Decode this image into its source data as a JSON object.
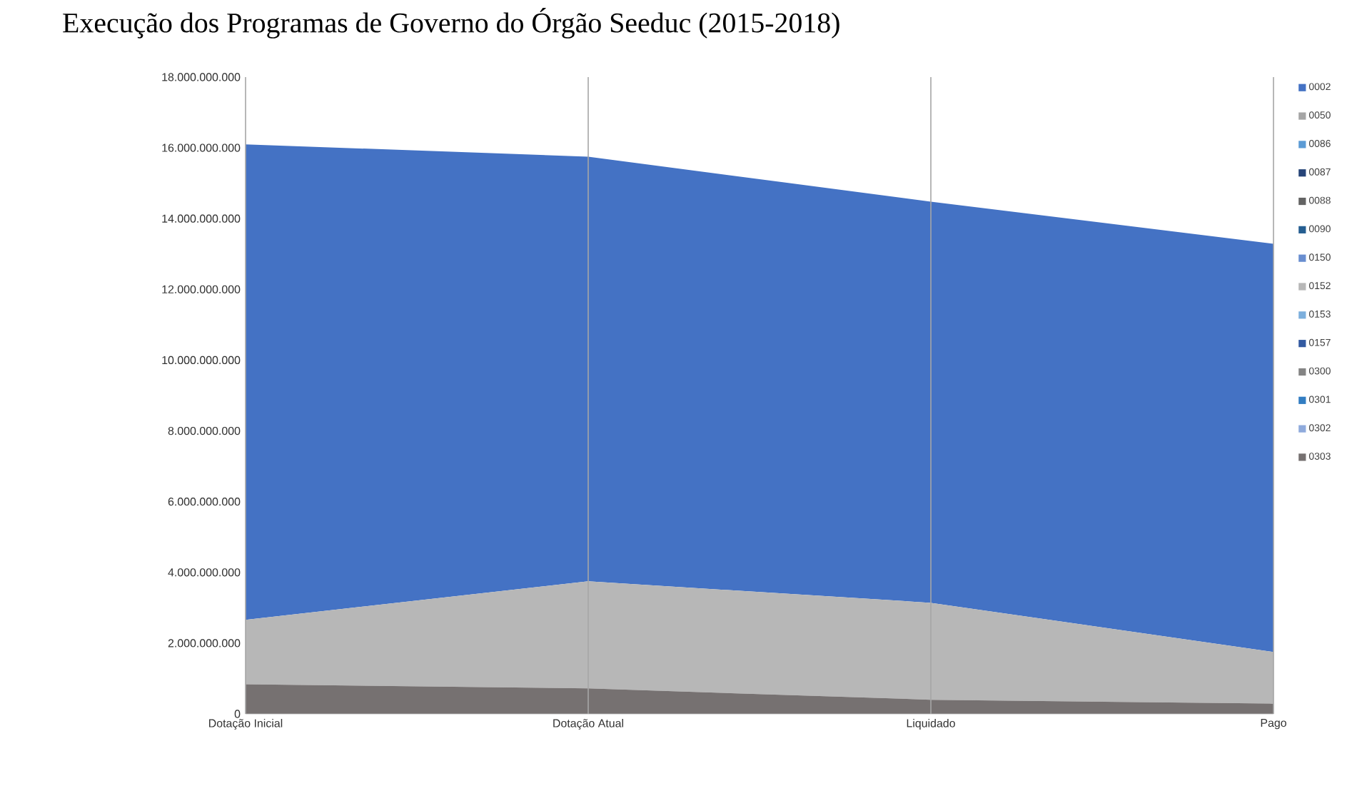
{
  "chart_data": {
    "type": "area",
    "stacked": true,
    "title": "Execução dos Programas de Governo do Órgão Seeduc (2015-2018)",
    "categories": [
      "Dotação Inicial",
      "Dotação Atual",
      "Liquidado",
      "Pago"
    ],
    "ylim": [
      0,
      18000000000
    ],
    "yticks": [
      {
        "value": 0,
        "label": "0"
      },
      {
        "value": 2000000000,
        "label": "2.000.000.000"
      },
      {
        "value": 4000000000,
        "label": "4.000.000.000"
      },
      {
        "value": 6000000000,
        "label": "6.000.000.000"
      },
      {
        "value": 8000000000,
        "label": "8.000.000.000"
      },
      {
        "value": 10000000000,
        "label": "10.000.000.000"
      },
      {
        "value": 12000000000,
        "label": "12.000.000.000"
      },
      {
        "value": 14000000000,
        "label": "14.000.000.000"
      },
      {
        "value": 16000000000,
        "label": "16.000.000.000"
      },
      {
        "value": 18000000000,
        "label": "18.000.000.000"
      }
    ],
    "grid": "x",
    "legend": "right",
    "series": [
      {
        "name": "0303",
        "color": "#767171",
        "values": [
          840000000,
          720000000,
          400000000,
          290000000
        ]
      },
      {
        "name": "0302",
        "color": "#8faadc",
        "values": [
          null,
          null,
          null,
          null
        ]
      },
      {
        "name": "0301",
        "color": "#327dc2",
        "values": [
          null,
          null,
          null,
          null
        ]
      },
      {
        "name": "0300",
        "color": "#848484",
        "values": [
          null,
          null,
          null,
          null
        ]
      },
      {
        "name": "0157",
        "color": "#335aa1",
        "values": [
          null,
          null,
          null,
          null
        ]
      },
      {
        "name": "0153",
        "color": "#7cafdd",
        "values": [
          null,
          null,
          null,
          null
        ]
      },
      {
        "name": "0152",
        "color": "#b7b7b7",
        "values": [
          1820000000,
          3030000000,
          2740000000,
          1460000000
        ]
      },
      {
        "name": "0150",
        "color": "#698ed0",
        "values": [
          null,
          null,
          null,
          null
        ]
      },
      {
        "name": "0090",
        "color": "#255e91",
        "values": [
          null,
          null,
          null,
          null
        ]
      },
      {
        "name": "0088",
        "color": "#636363",
        "values": [
          null,
          null,
          null,
          null
        ]
      },
      {
        "name": "0087",
        "color": "#264478",
        "values": [
          null,
          null,
          null,
          null
        ]
      },
      {
        "name": "0086",
        "color": "#5b9bd5",
        "values": [
          null,
          null,
          null,
          null
        ]
      },
      {
        "name": "0050",
        "color": "#a5a5a5",
        "values": [
          null,
          null,
          null,
          null
        ]
      },
      {
        "name": "0002",
        "color": "#4472c4",
        "values": [
          13440000000,
          12000000000,
          11340000000,
          11540000000
        ]
      }
    ]
  }
}
